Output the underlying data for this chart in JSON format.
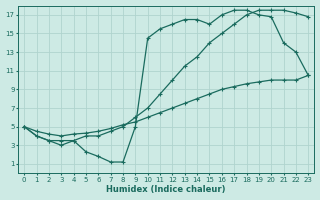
{
  "bg_color": "#cdeae4",
  "grid_color": "#b0d4ce",
  "line_color": "#1a6b5e",
  "line_width": 0.9,
  "marker": "+",
  "marker_size": 3,
  "xlabel": "Humidex (Indice chaleur)",
  "xlim": [
    -0.5,
    23.5
  ],
  "ylim": [
    0,
    18
  ],
  "xticks": [
    0,
    1,
    2,
    3,
    4,
    5,
    6,
    7,
    8,
    9,
    10,
    11,
    12,
    13,
    14,
    15,
    16,
    17,
    18,
    19,
    20,
    21,
    22,
    23
  ],
  "yticks": [
    1,
    3,
    5,
    7,
    9,
    11,
    13,
    15,
    17
  ],
  "curve1_x": [
    0,
    1,
    2,
    3,
    4,
    5,
    6,
    7,
    8,
    9,
    10,
    11,
    12,
    13,
    14,
    15,
    16,
    17,
    18,
    19,
    20,
    21,
    22,
    23
  ],
  "curve1_y": [
    5,
    4,
    3.5,
    3.5,
    3.5,
    4,
    4,
    4.5,
    5,
    6,
    7,
    8.5,
    10,
    11.5,
    12.5,
    14,
    15,
    16,
    17,
    17.5,
    17.5,
    17.5,
    17.2,
    16.8
  ],
  "curve2_x": [
    0,
    1,
    2,
    3,
    4,
    5,
    6,
    7,
    8,
    9,
    10,
    11,
    12,
    13,
    14,
    15,
    16,
    17,
    18,
    19,
    20,
    21,
    22,
    23
  ],
  "curve2_y": [
    5,
    4,
    3.5,
    3,
    3.5,
    2.3,
    1.8,
    1.2,
    1.2,
    5,
    14.5,
    15.5,
    16,
    16.5,
    16.5,
    16,
    17,
    17.5,
    17.5,
    17,
    16.8,
    14,
    13,
    10.5
  ],
  "curve3_x": [
    0,
    1,
    2,
    3,
    4,
    5,
    6,
    7,
    8,
    9,
    10,
    11,
    12,
    13,
    14,
    15,
    16,
    17,
    18,
    19,
    20,
    21,
    22,
    23
  ],
  "curve3_y": [
    5,
    4.5,
    4.2,
    4,
    4.2,
    4.3,
    4.5,
    4.8,
    5.2,
    5.5,
    6,
    6.5,
    7,
    7.5,
    8,
    8.5,
    9,
    9.3,
    9.6,
    9.8,
    10,
    10,
    10,
    10.5
  ]
}
